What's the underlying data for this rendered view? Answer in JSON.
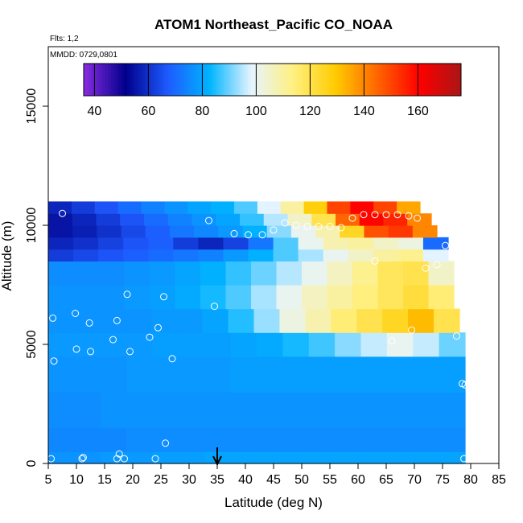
{
  "chart_data": {
    "type": "heatmap",
    "title": "ATOM1 Northeast_Pacific CO_NOAA",
    "flights_label": "Flts: 1,2",
    "date_label": "MMDD: 0729,0801",
    "xlabel": "Latitude (deg N)",
    "ylabel": "Altitude (m)",
    "xlim": [
      5,
      85
    ],
    "ylim": [
      0,
      17500
    ],
    "x_ticks": [
      "5",
      "10",
      "15",
      "20",
      "25",
      "30",
      "35",
      "40",
      "45",
      "50",
      "55",
      "60",
      "65",
      "70",
      "75",
      "80",
      "85"
    ],
    "y_ticks": [
      "0",
      "5000",
      "10000",
      "15000"
    ],
    "colorbar": {
      "range": [
        36,
        176
      ],
      "ticks": [
        "40",
        "60",
        "80",
        "100",
        "120",
        "140",
        "160"
      ],
      "stops": [
        "#8a2be2",
        "#00008b",
        "#1e5aff",
        "#00b4ff",
        "#e6f4ff",
        "#fff080",
        "#ffcc00",
        "#ff6600",
        "#ff0000",
        "#aa1515"
      ]
    },
    "arrow_latitude": 35,
    "bands": [
      {
        "zmin": 0,
        "zmax": 500,
        "lat_end": 79,
        "values": [
          77,
          77,
          78,
          78,
          79,
          79,
          80,
          80,
          80,
          80,
          80,
          80,
          80,
          80,
          80,
          80
        ]
      },
      {
        "zmin": 500,
        "zmax": 1500,
        "lat_end": 79,
        "values": [
          75,
          75,
          75,
          76,
          76,
          76,
          76,
          76,
          76,
          76,
          76,
          76,
          76,
          76,
          76,
          76
        ]
      },
      {
        "zmin": 1500,
        "zmax": 3000,
        "lat_end": 79,
        "values": [
          76,
          76,
          77,
          77,
          77,
          77,
          77,
          77,
          77,
          77,
          77,
          77,
          77,
          77,
          77,
          77
        ]
      },
      {
        "zmin": 3000,
        "zmax": 4500,
        "lat_end": 79,
        "values": [
          77,
          77,
          77,
          78,
          78,
          78,
          78,
          79,
          79,
          79,
          79,
          79,
          79,
          79,
          79,
          79
        ]
      },
      {
        "zmin": 4500,
        "zmax": 5500,
        "lat_end": 79,
        "values": [
          78,
          78,
          78,
          78,
          79,
          79,
          79,
          80,
          81,
          84,
          87,
          92,
          96,
          100,
          96,
          90
        ]
      },
      {
        "zmin": 5500,
        "zmax": 6500,
        "lat_end": 78,
        "values": [
          77,
          77,
          77,
          77,
          78,
          78,
          80,
          85,
          93,
          102,
          108,
          115,
          120,
          125,
          132,
          120
        ]
      },
      {
        "zmin": 6500,
        "zmax": 7500,
        "lat_end": 77,
        "values": [
          77,
          77,
          77,
          78,
          79,
          81,
          84,
          88,
          94,
          100,
          106,
          110,
          114,
          118,
          122,
          115
        ]
      },
      {
        "zmin": 7500,
        "zmax": 8500,
        "lat_end": 77,
        "values": [
          76,
          76,
          76,
          77,
          78,
          80,
          82,
          86,
          90,
          95,
          100,
          106,
          112,
          118,
          120,
          105
        ]
      },
      {
        "zmin": 8500,
        "zmax": 9000,
        "lat_end": 76,
        "values": [
          62,
          64,
          66,
          68,
          70,
          72,
          74,
          78,
          82,
          88,
          94,
          100,
          105,
          110,
          112,
          98
        ]
      },
      {
        "zmin": 9000,
        "zmax": 9500,
        "lat_end": 76,
        "values": [
          58,
          60,
          63,
          66,
          68,
          62,
          58,
          63,
          72,
          88,
          100,
          108,
          110,
          105,
          102,
          70
        ]
      },
      {
        "zmin": 9500,
        "zmax": 10000,
        "lat_end": 74,
        "values": [
          55,
          57,
          60,
          64,
          68,
          72,
          75,
          78,
          82,
          92,
          100,
          108,
          125,
          148,
          152,
          140
        ]
      },
      {
        "zmin": 10000,
        "zmax": 10500,
        "lat_end": 73,
        "values": [
          55,
          58,
          62,
          66,
          70,
          74,
          77,
          80,
          86,
          95,
          105,
          120,
          145,
          160,
          155,
          140
        ]
      },
      {
        "zmin": 10500,
        "zmax": 11000,
        "lat_end": 71,
        "values": [
          58,
          62,
          66,
          70,
          74,
          77,
          80,
          82,
          88,
          98,
          110,
          128,
          150,
          160,
          150,
          135
        ]
      }
    ],
    "points": [
      {
        "lat": 5.5,
        "alt": 200
      },
      {
        "lat": 11,
        "alt": 200
      },
      {
        "lat": 11.2,
        "alt": 250
      },
      {
        "lat": 17.2,
        "alt": 200
      },
      {
        "lat": 17.6,
        "alt": 400
      },
      {
        "lat": 18.5,
        "alt": 200
      },
      {
        "lat": 24,
        "alt": 200
      },
      {
        "lat": 25.8,
        "alt": 850
      },
      {
        "lat": 6,
        "alt": 4300
      },
      {
        "lat": 10,
        "alt": 4800
      },
      {
        "lat": 12.5,
        "alt": 4700
      },
      {
        "lat": 19.5,
        "alt": 4700
      },
      {
        "lat": 16.5,
        "alt": 5200
      },
      {
        "lat": 23,
        "alt": 5300
      },
      {
        "lat": 24.5,
        "alt": 5700
      },
      {
        "lat": 27,
        "alt": 4400
      },
      {
        "lat": 5.8,
        "alt": 6100
      },
      {
        "lat": 9.8,
        "alt": 6300
      },
      {
        "lat": 12.3,
        "alt": 5900
      },
      {
        "lat": 17.2,
        "alt": 6000
      },
      {
        "lat": 19,
        "alt": 7100
      },
      {
        "lat": 25.5,
        "alt": 7000
      },
      {
        "lat": 34.5,
        "alt": 6600
      },
      {
        "lat": 7.5,
        "alt": 10500
      },
      {
        "lat": 33.5,
        "alt": 10200
      },
      {
        "lat": 38,
        "alt": 9650
      },
      {
        "lat": 40.5,
        "alt": 9600
      },
      {
        "lat": 43,
        "alt": 9600
      },
      {
        "lat": 45,
        "alt": 9800
      },
      {
        "lat": 47,
        "alt": 10100
      },
      {
        "lat": 49,
        "alt": 10000
      },
      {
        "lat": 51,
        "alt": 9950
      },
      {
        "lat": 53,
        "alt": 9950
      },
      {
        "lat": 55,
        "alt": 9950
      },
      {
        "lat": 57,
        "alt": 9900
      },
      {
        "lat": 59,
        "alt": 10300
      },
      {
        "lat": 61,
        "alt": 10450
      },
      {
        "lat": 63,
        "alt": 10450
      },
      {
        "lat": 65,
        "alt": 10450
      },
      {
        "lat": 67,
        "alt": 10450
      },
      {
        "lat": 69,
        "alt": 10400
      },
      {
        "lat": 70.5,
        "alt": 10300
      },
      {
        "lat": 75.5,
        "alt": 9750
      },
      {
        "lat": 75.5,
        "alt": 9150
      },
      {
        "lat": 63,
        "alt": 8500
      },
      {
        "lat": 72,
        "alt": 8200
      },
      {
        "lat": 74,
        "alt": 8350
      },
      {
        "lat": 69.5,
        "alt": 5600
      },
      {
        "lat": 66,
        "alt": 5150
      },
      {
        "lat": 77.5,
        "alt": 5350
      },
      {
        "lat": 78.5,
        "alt": 3350
      },
      {
        "lat": 79,
        "alt": 3300
      },
      {
        "lat": 78.8,
        "alt": 200
      }
    ]
  }
}
